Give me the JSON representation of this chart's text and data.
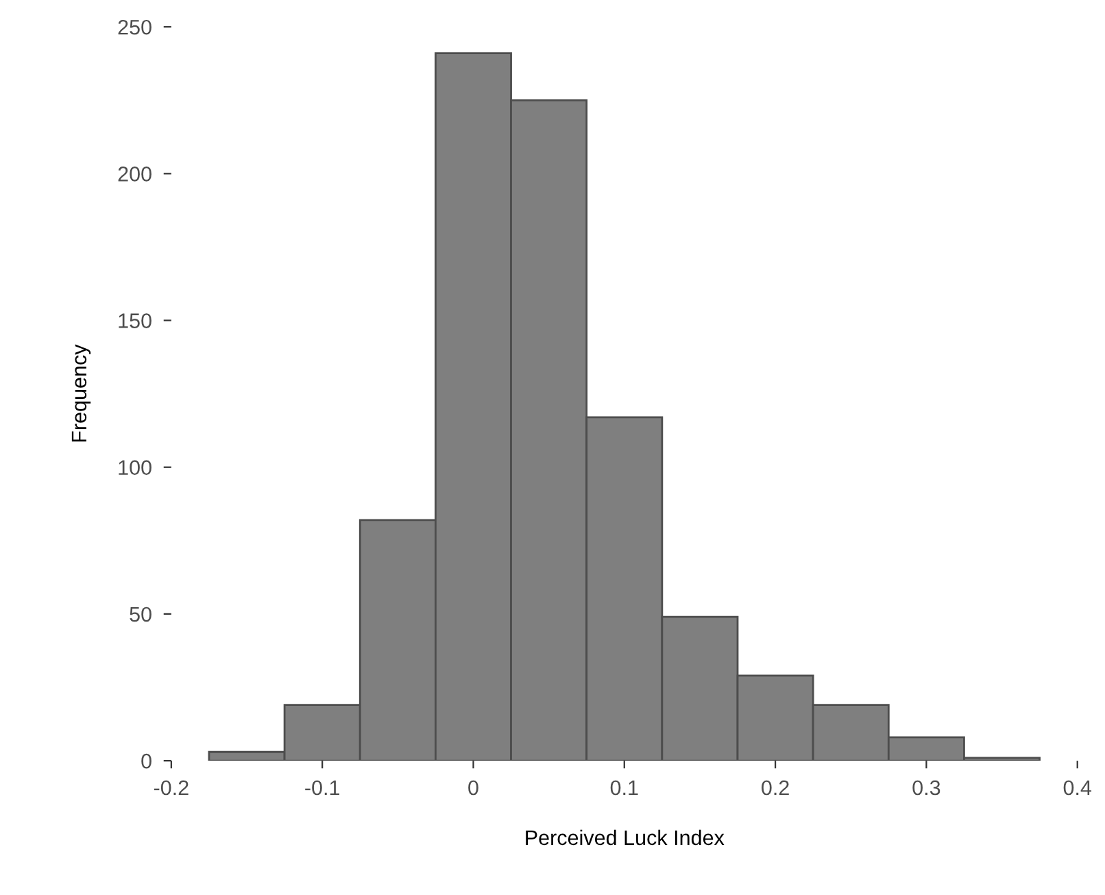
{
  "chart_data": {
    "type": "histogram",
    "xlabel": "Perceived Luck Index",
    "ylabel": "Frequency",
    "bins": [
      -0.175,
      -0.125,
      -0.075,
      -0.025,
      0.025,
      0.075,
      0.125,
      0.175,
      0.225,
      0.275,
      0.325,
      0.375
    ],
    "values": [
      3,
      19,
      82,
      241,
      225,
      117,
      49,
      29,
      19,
      8,
      1
    ],
    "color": "#7f7f7f",
    "xlim": [
      -0.2,
      0.4
    ],
    "xticks": [
      -0.2,
      -0.1,
      0,
      0.1,
      0.2,
      0.3,
      0.4
    ],
    "ylim": [
      0,
      250
    ],
    "yticks": [
      0,
      50,
      100,
      150,
      200,
      250
    ],
    "grid": false
  }
}
